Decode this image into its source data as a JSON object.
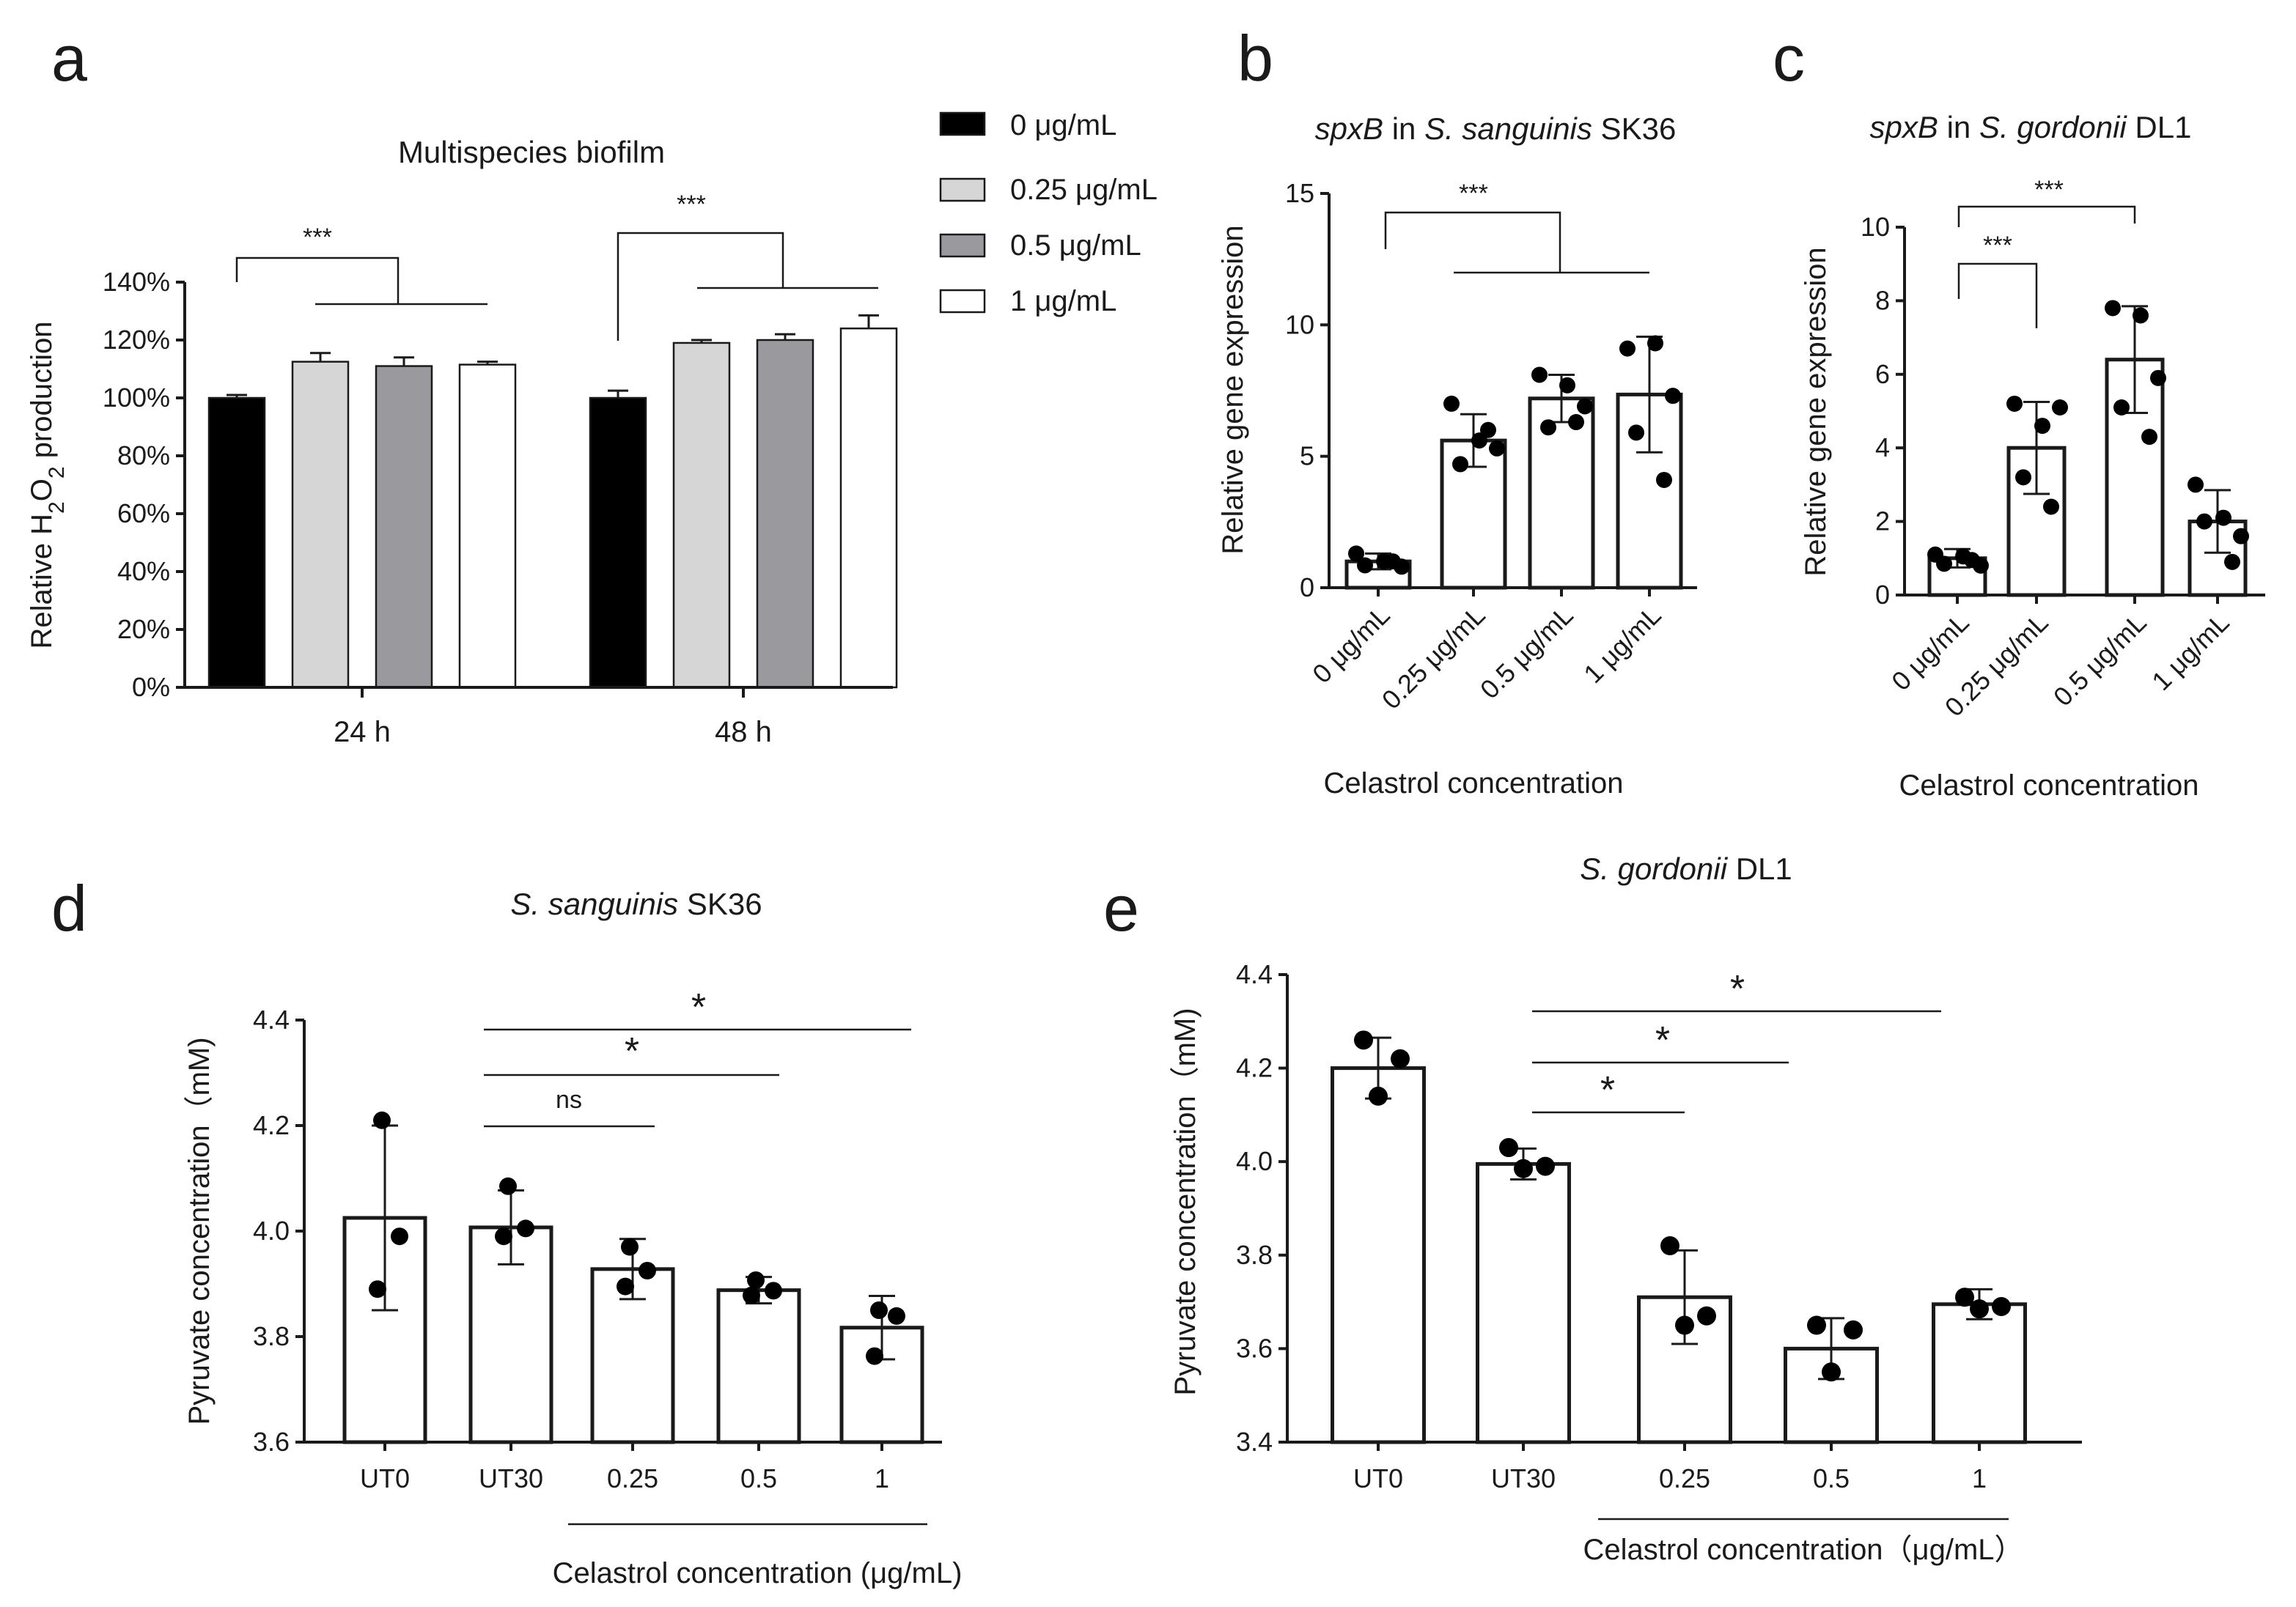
{
  "panel_labels": {
    "a": "a",
    "b": "b",
    "c": "c",
    "d": "d",
    "e": "e"
  },
  "legend": {
    "items": [
      {
        "label": "0 μg/mL",
        "color": "#000000"
      },
      {
        "label": "0.25 μg/mL",
        "color": "#d6d6d6"
      },
      {
        "label": "0.5 μg/mL",
        "color": "#9a9a9e"
      },
      {
        "label": "1  μg/mL",
        "color": "#ffffff"
      }
    ]
  },
  "chart_data": [
    {
      "id": "a",
      "type": "bar",
      "title": "Multispecies biofilm",
      "ylabel": "Relative H2O2 production",
      "categories": [
        "24 h",
        "48 h"
      ],
      "ylim": [
        0,
        140
      ],
      "yticks": [
        "0%",
        "20%",
        "40%",
        "60%",
        "80%",
        "100%",
        "120%",
        "140%"
      ],
      "series": [
        {
          "name": "0 μg/mL",
          "values": [
            100,
            100
          ],
          "errors": [
            1,
            2.5
          ]
        },
        {
          "name": "0.25 μg/mL",
          "values": [
            112.5,
            119
          ],
          "errors": [
            3,
            1
          ]
        },
        {
          "name": "0.5 μg/mL",
          "values": [
            111,
            120
          ],
          "errors": [
            3,
            2
          ]
        },
        {
          "name": "1  μg/mL",
          "values": [
            111.5,
            124
          ],
          "errors": [
            1,
            4.5
          ]
        }
      ],
      "significance": [
        "***",
        "***"
      ]
    },
    {
      "id": "b",
      "type": "bar",
      "title_italic": "spxB",
      "title_mid": " in ",
      "title_italic2": "S. sanguinis",
      "title_tail": " SK36",
      "ylabel": "Relative gene expression",
      "xlabel": "Celastrol concentration",
      "categories": [
        "0 μg/mL",
        "0.25 μg/mL",
        "0.5 μg/mL",
        "1 μg/mL"
      ],
      "ylim": [
        0,
        15
      ],
      "yticks": [
        "0",
        "5",
        "10",
        "15"
      ],
      "values": [
        1.0,
        5.6,
        7.2,
        7.35
      ],
      "errors": [
        0.3,
        1.0,
        0.9,
        2.2
      ],
      "points": [
        [
          1.3,
          1.0,
          0.8,
          0.85,
          1.0
        ],
        [
          7.0,
          5.6,
          5.3,
          4.7,
          6.0
        ],
        [
          8.1,
          7.7,
          6.9,
          6.1,
          6.3
        ],
        [
          9.1,
          9.3,
          7.3,
          5.9,
          4.1
        ]
      ],
      "significance": [
        "***"
      ]
    },
    {
      "id": "c",
      "type": "bar",
      "title_italic": "spxB",
      "title_mid": " in ",
      "title_italic2": "S. gordonii",
      "title_tail": " DL1",
      "ylabel": "Relative gene expression",
      "xlabel": "Celastrol concentration",
      "categories": [
        "0 μg/mL",
        "0.25 μg/mL",
        "0.5 μg/mL",
        "1 μg/mL"
      ],
      "ylim": [
        0,
        10
      ],
      "yticks": [
        "0",
        "2",
        "4",
        "6",
        "8",
        "10"
      ],
      "values": [
        1.0,
        4.0,
        6.4,
        2.0
      ],
      "errors": [
        0.25,
        1.25,
        1.45,
        0.85
      ],
      "points": [
        [
          1.1,
          1.05,
          0.8,
          0.85,
          0.95
        ],
        [
          5.2,
          4.6,
          5.1,
          3.2,
          2.4
        ],
        [
          7.8,
          7.6,
          5.9,
          5.1,
          4.3
        ],
        [
          3.0,
          2.1,
          1.6,
          2.0,
          0.9
        ]
      ],
      "significance": [
        "***",
        "***"
      ]
    },
    {
      "id": "d",
      "type": "bar",
      "title_italic": "S. sanguinis",
      "title_tail": " SK36",
      "ylabel": "Pyruvate concentration（mM)",
      "xlabel": "Celastrol concentration (μg/mL)",
      "categories": [
        "UT0",
        "UT30",
        "0.25",
        "0.5",
        "1"
      ],
      "ylim": [
        3.6,
        4.4
      ],
      "yticks": [
        "3.6",
        "3.8",
        "4.0",
        "4.2",
        "4.4"
      ],
      "values": [
        4.025,
        4.007,
        3.928,
        3.888,
        3.817
      ],
      "errors": [
        0.175,
        0.07,
        0.057,
        0.025,
        0.06
      ],
      "points": [
        [
          4.21,
          3.99,
          3.89
        ],
        [
          4.085,
          4.005,
          3.99
        ],
        [
          3.97,
          3.925,
          3.895
        ],
        [
          3.907,
          3.887,
          3.878
        ],
        [
          3.85,
          3.839,
          3.763
        ]
      ],
      "significance": [
        "ns",
        "*",
        "*"
      ]
    },
    {
      "id": "e",
      "type": "bar",
      "title_italic": "S. gordonii",
      "title_tail": " DL1",
      "ylabel": "Pyruvate concentration（mM)",
      "xlabel": "Celastrol concentration（μg/mL）",
      "categories": [
        "UT0",
        "UT30",
        "0.25",
        "0.5",
        "1"
      ],
      "ylim": [
        3.4,
        4.4
      ],
      "yticks": [
        "3.4",
        "3.6",
        "3.8",
        "4.0",
        "4.2",
        "4.4"
      ],
      "values": [
        4.2,
        3.995,
        3.71,
        3.6,
        3.695
      ],
      "errors": [
        0.065,
        0.033,
        0.1,
        0.065,
        0.032
      ],
      "points": [
        [
          4.26,
          4.22,
          4.14
        ],
        [
          4.03,
          3.99,
          3.985
        ],
        [
          3.82,
          3.67,
          3.65
        ],
        [
          3.65,
          3.64,
          3.55
        ],
        [
          3.71,
          3.69,
          3.685
        ]
      ],
      "significance": [
        "*",
        "*",
        "*"
      ]
    }
  ]
}
